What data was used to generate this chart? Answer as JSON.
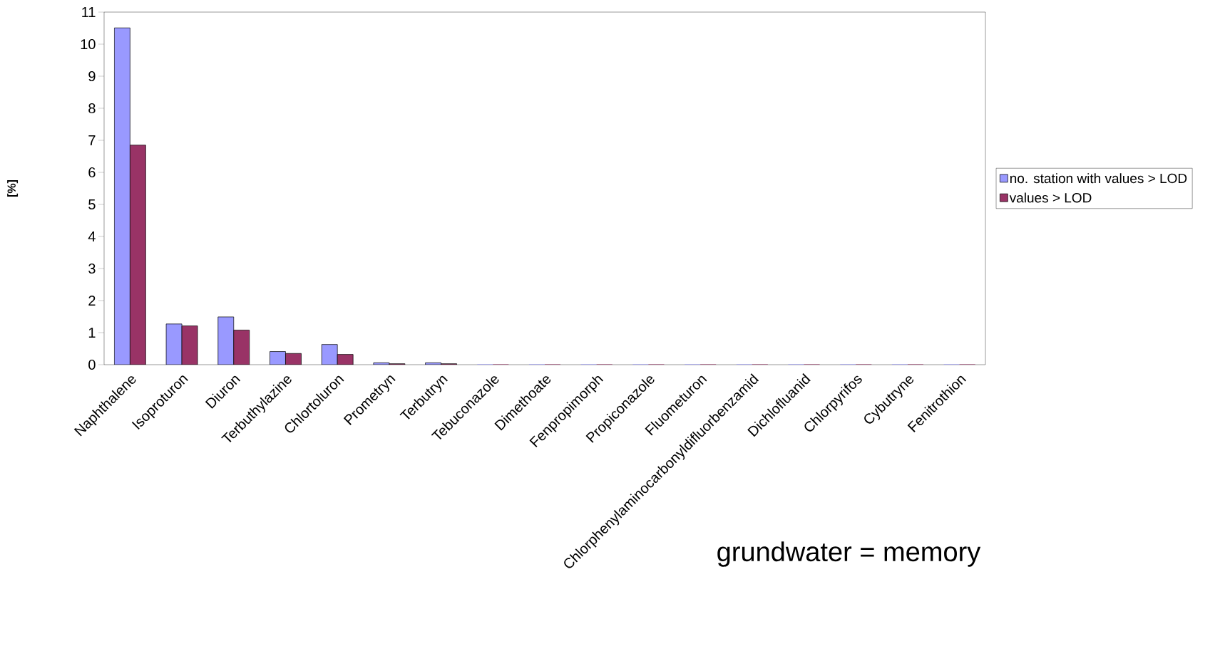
{
  "chart_data": {
    "type": "bar",
    "ylabel": "[%]",
    "categories": [
      "Naphthalene",
      "Isoproturon",
      "Diuron",
      "Terbuthylazine",
      "Chlortoluron",
      "Prometryn",
      "Terbutryn",
      "Tebuconazole",
      "Dimethoate",
      "Fenpropimorph",
      "Propiconazole",
      "Fluometuron",
      "Chlorphenylaminocarbonyldifluorbenzamid",
      "Dichlofluanid",
      "Chlorpyrifos",
      "Cybutryne",
      "Fenitrothion"
    ],
    "series": [
      {
        "name": "no. station with values > LOD",
        "color": "#9999ff",
        "values": [
          10.51,
          1.27,
          1.49,
          0.41,
          0.63,
          0.06,
          0.06,
          0,
          0,
          0,
          0,
          0,
          0,
          0,
          0,
          0,
          0
        ]
      },
      {
        "name": "values > LOD",
        "color": "#993366",
        "values": [
          6.85,
          1.21,
          1.08,
          0.35,
          0.32,
          0.03,
          0.03,
          0,
          0,
          0,
          0,
          0,
          0,
          0,
          0,
          0,
          0
        ]
      }
    ],
    "ylim": [
      0,
      11
    ],
    "yticks": [
      0,
      1,
      2,
      3,
      4,
      5,
      6,
      7,
      8,
      9,
      10,
      11
    ],
    "grid": false,
    "legend": "right",
    "annotations": [
      "grundwater = memory"
    ]
  }
}
